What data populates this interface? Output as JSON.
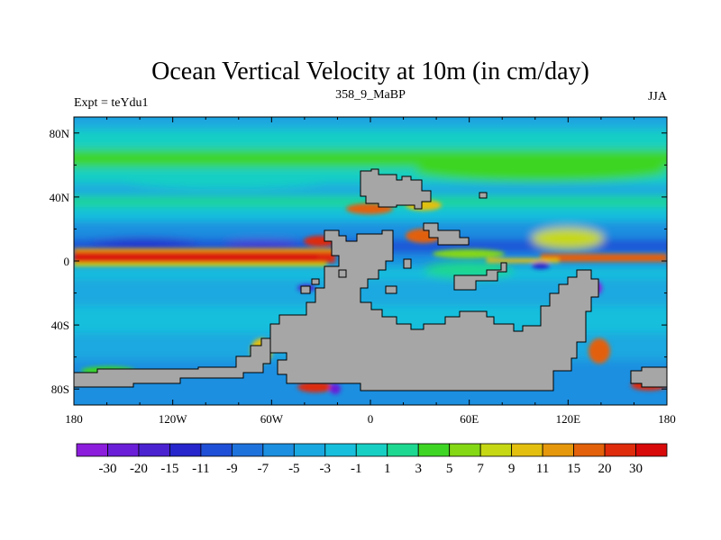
{
  "chart_data": {
    "type": "heatmap",
    "title": "Ocean Vertical Velocity at 10m (in cm/day)",
    "subtitle_left": "Expt = teYdu1",
    "subtitle_center": "358_9_MaBP",
    "subtitle_right": "JJA",
    "x_ticks": [
      "180",
      "120W",
      "60W",
      "0",
      "60E",
      "120E",
      "180"
    ],
    "y_ticks": [
      "80N",
      "40N",
      "0",
      "40S",
      "80S"
    ],
    "x_range": [
      -180,
      180
    ],
    "y_range": [
      -90,
      90
    ],
    "colorbar": {
      "labels": [
        "-30",
        "-20",
        "-15",
        "-11",
        "-9",
        "-7",
        "-5",
        "-3",
        "-1",
        "1",
        "3",
        "5",
        "7",
        "9",
        "11",
        "15",
        "20",
        "30"
      ],
      "colors": [
        "#8c1ddc",
        "#6a1ed8",
        "#4a22d0",
        "#2626cc",
        "#1f4fd6",
        "#1e72dc",
        "#1c8fe0",
        "#1aa8e0",
        "#18bfdc",
        "#18cfc4",
        "#1dd890",
        "#3ed524",
        "#84d814",
        "#c6d814",
        "#e3bf10",
        "#e5980c",
        "#e2610a",
        "#de2c0c",
        "#d80a0a"
      ]
    },
    "land_color": "#a6a6a6"
  }
}
